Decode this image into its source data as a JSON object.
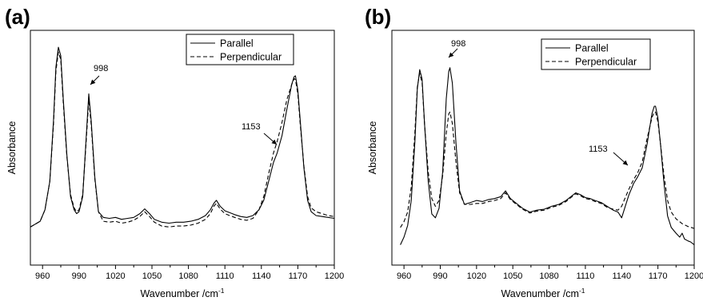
{
  "chart_data": [
    {
      "panel_label": "(a)",
      "type": "line",
      "xlabel": "Wavenumber /cm",
      "xlabel_superscript": "-1",
      "ylabel": "Absorbance",
      "xlim": [
        950,
        1200
      ],
      "ylim": [
        0,
        1
      ],
      "xticks": [
        960,
        990,
        1020,
        1050,
        1080,
        1110,
        1140,
        1170,
        1200
      ],
      "legend_position": "top-right",
      "series": [
        {
          "name": "Parallel",
          "style": "solid",
          "color": "#000000",
          "points": [
            [
              950,
              0.04
            ],
            [
              958,
              0.07
            ],
            [
              962,
              0.13
            ],
            [
              966,
              0.28
            ],
            [
              969,
              0.6
            ],
            [
              971,
              0.88
            ],
            [
              973,
              0.985
            ],
            [
              975,
              0.94
            ],
            [
              977,
              0.72
            ],
            [
              980,
              0.42
            ],
            [
              983,
              0.2
            ],
            [
              986,
              0.13
            ],
            [
              988,
              0.11
            ],
            [
              990,
              0.12
            ],
            [
              993,
              0.2
            ],
            [
              996,
              0.52
            ],
            [
              998,
              0.74
            ],
            [
              1000,
              0.6
            ],
            [
              1003,
              0.3
            ],
            [
              1006,
              0.12
            ],
            [
              1010,
              0.09
            ],
            [
              1015,
              0.085
            ],
            [
              1020,
              0.09
            ],
            [
              1025,
              0.08
            ],
            [
              1030,
              0.085
            ],
            [
              1035,
              0.09
            ],
            [
              1040,
              0.11
            ],
            [
              1044,
              0.135
            ],
            [
              1048,
              0.11
            ],
            [
              1052,
              0.08
            ],
            [
              1058,
              0.065
            ],
            [
              1064,
              0.06
            ],
            [
              1070,
              0.065
            ],
            [
              1076,
              0.065
            ],
            [
              1082,
              0.07
            ],
            [
              1088,
              0.08
            ],
            [
              1094,
              0.1
            ],
            [
              1098,
              0.13
            ],
            [
              1101,
              0.165
            ],
            [
              1103,
              0.18
            ],
            [
              1106,
              0.15
            ],
            [
              1110,
              0.125
            ],
            [
              1114,
              0.115
            ],
            [
              1118,
              0.105
            ],
            [
              1123,
              0.095
            ],
            [
              1128,
              0.09
            ],
            [
              1133,
              0.1
            ],
            [
              1138,
              0.13
            ],
            [
              1142,
              0.18
            ],
            [
              1146,
              0.28
            ],
            [
              1150,
              0.38
            ],
            [
              1153,
              0.43
            ],
            [
              1157,
              0.52
            ],
            [
              1161,
              0.66
            ],
            [
              1165,
              0.79
            ],
            [
              1167,
              0.83
            ],
            [
              1168,
              0.835
            ],
            [
              1170,
              0.76
            ],
            [
              1172,
              0.6
            ],
            [
              1175,
              0.35
            ],
            [
              1178,
              0.18
            ],
            [
              1181,
              0.12
            ],
            [
              1185,
              0.1
            ],
            [
              1190,
              0.095
            ],
            [
              1195,
              0.09
            ],
            [
              1200,
              0.085
            ]
          ]
        },
        {
          "name": "Perpendicular",
          "style": "dashed",
          "color": "#000000",
          "points": [
            [
              950,
              0.04
            ],
            [
              958,
              0.07
            ],
            [
              962,
              0.13
            ],
            [
              966,
              0.28
            ],
            [
              969,
              0.58
            ],
            [
              971,
              0.86
            ],
            [
              973,
              0.96
            ],
            [
              975,
              0.92
            ],
            [
              977,
              0.7
            ],
            [
              980,
              0.41
            ],
            [
              983,
              0.21
            ],
            [
              986,
              0.14
            ],
            [
              988,
              0.12
            ],
            [
              990,
              0.13
            ],
            [
              993,
              0.21
            ],
            [
              996,
              0.5
            ],
            [
              998,
              0.71
            ],
            [
              1000,
              0.58
            ],
            [
              1003,
              0.29
            ],
            [
              1006,
              0.12
            ],
            [
              1010,
              0.07
            ],
            [
              1015,
              0.065
            ],
            [
              1020,
              0.07
            ],
            [
              1025,
              0.06
            ],
            [
              1030,
              0.065
            ],
            [
              1035,
              0.075
            ],
            [
              1040,
              0.095
            ],
            [
              1044,
              0.12
            ],
            [
              1048,
              0.095
            ],
            [
              1052,
              0.065
            ],
            [
              1058,
              0.045
            ],
            [
              1064,
              0.04
            ],
            [
              1070,
              0.045
            ],
            [
              1076,
              0.045
            ],
            [
              1082,
              0.05
            ],
            [
              1088,
              0.06
            ],
            [
              1094,
              0.08
            ],
            [
              1098,
              0.11
            ],
            [
              1101,
              0.15
            ],
            [
              1103,
              0.165
            ],
            [
              1106,
              0.135
            ],
            [
              1110,
              0.11
            ],
            [
              1114,
              0.1
            ],
            [
              1118,
              0.09
            ],
            [
              1123,
              0.08
            ],
            [
              1128,
              0.075
            ],
            [
              1133,
              0.085
            ],
            [
              1138,
              0.13
            ],
            [
              1142,
              0.2
            ],
            [
              1146,
              0.32
            ],
            [
              1150,
              0.43
            ],
            [
              1153,
              0.49
            ],
            [
              1157,
              0.59
            ],
            [
              1161,
              0.71
            ],
            [
              1165,
              0.79
            ],
            [
              1167,
              0.82
            ],
            [
              1168,
              0.815
            ],
            [
              1170,
              0.74
            ],
            [
              1172,
              0.58
            ],
            [
              1175,
              0.36
            ],
            [
              1178,
              0.2
            ],
            [
              1181,
              0.14
            ],
            [
              1185,
              0.12
            ],
            [
              1190,
              0.11
            ],
            [
              1195,
              0.1
            ],
            [
              1200,
              0.095
            ]
          ]
        }
      ],
      "annotations": [
        {
          "text": "998",
          "x": 998
        },
        {
          "text": "1153",
          "x": 1153
        }
      ]
    },
    {
      "panel_label": "(b)",
      "type": "line",
      "xlabel": "Wavenumber /cm",
      "xlabel_superscript": "-1",
      "ylabel": "Absorbance",
      "xlim": [
        950,
        1200
      ],
      "ylim": [
        0,
        1
      ],
      "xticks": [
        960,
        990,
        1020,
        1050,
        1080,
        1110,
        1140,
        1170,
        1200
      ],
      "legend_position": "top-right",
      "series": [
        {
          "name": "Parallel",
          "style": "solid",
          "color": "#000000",
          "points": [
            [
              957,
              0.02
            ],
            [
              960,
              0.06
            ],
            [
              963,
              0.12
            ],
            [
              966,
              0.25
            ],
            [
              969,
              0.55
            ],
            [
              971,
              0.83
            ],
            [
              973,
              0.93
            ],
            [
              975,
              0.88
            ],
            [
              977,
              0.65
            ],
            [
              980,
              0.35
            ],
            [
              983,
              0.18
            ],
            [
              986,
              0.16
            ],
            [
              989,
              0.21
            ],
            [
              992,
              0.4
            ],
            [
              995,
              0.78
            ],
            [
              997,
              0.92
            ],
            [
              998,
              0.94
            ],
            [
              1000,
              0.86
            ],
            [
              1003,
              0.55
            ],
            [
              1006,
              0.3
            ],
            [
              1010,
              0.23
            ],
            [
              1015,
              0.24
            ],
            [
              1020,
              0.25
            ],
            [
              1025,
              0.245
            ],
            [
              1030,
              0.255
            ],
            [
              1035,
              0.26
            ],
            [
              1040,
              0.27
            ],
            [
              1044,
              0.3
            ],
            [
              1048,
              0.26
            ],
            [
              1052,
              0.24
            ],
            [
              1058,
              0.21
            ],
            [
              1064,
              0.19
            ],
            [
              1070,
              0.2
            ],
            [
              1076,
              0.205
            ],
            [
              1082,
              0.22
            ],
            [
              1088,
              0.23
            ],
            [
              1094,
              0.25
            ],
            [
              1098,
              0.27
            ],
            [
              1102,
              0.29
            ],
            [
              1106,
              0.28
            ],
            [
              1110,
              0.265
            ],
            [
              1114,
              0.26
            ],
            [
              1118,
              0.25
            ],
            [
              1123,
              0.24
            ],
            [
              1128,
              0.22
            ],
            [
              1133,
              0.2
            ],
            [
              1137,
              0.19
            ],
            [
              1140,
              0.16
            ],
            [
              1142,
              0.2
            ],
            [
              1146,
              0.28
            ],
            [
              1150,
              0.34
            ],
            [
              1153,
              0.37
            ],
            [
              1157,
              0.42
            ],
            [
              1161,
              0.54
            ],
            [
              1165,
              0.7
            ],
            [
              1167,
              0.74
            ],
            [
              1168,
              0.74
            ],
            [
              1170,
              0.68
            ],
            [
              1172,
              0.55
            ],
            [
              1175,
              0.34
            ],
            [
              1178,
              0.17
            ],
            [
              1181,
              0.11
            ],
            [
              1185,
              0.08
            ],
            [
              1188,
              0.06
            ],
            [
              1190,
              0.08
            ],
            [
              1192,
              0.05
            ],
            [
              1195,
              0.04
            ],
            [
              1197,
              0.035
            ],
            [
              1200,
              0.02
            ]
          ]
        },
        {
          "name": "Perpendicular",
          "style": "dashed",
          "color": "#000000",
          "points": [
            [
              957,
              0.11
            ],
            [
              960,
              0.14
            ],
            [
              963,
              0.19
            ],
            [
              966,
              0.32
            ],
            [
              969,
              0.6
            ],
            [
              971,
              0.84
            ],
            [
              973,
              0.91
            ],
            [
              975,
              0.86
            ],
            [
              977,
              0.65
            ],
            [
              980,
              0.4
            ],
            [
              983,
              0.26
            ],
            [
              986,
              0.22
            ],
            [
              989,
              0.25
            ],
            [
              992,
              0.38
            ],
            [
              995,
              0.6
            ],
            [
              997,
              0.7
            ],
            [
              998,
              0.71
            ],
            [
              1000,
              0.65
            ],
            [
              1003,
              0.45
            ],
            [
              1006,
              0.29
            ],
            [
              1010,
              0.23
            ],
            [
              1015,
              0.23
            ],
            [
              1020,
              0.235
            ],
            [
              1025,
              0.235
            ],
            [
              1030,
              0.245
            ],
            [
              1035,
              0.25
            ],
            [
              1040,
              0.26
            ],
            [
              1044,
              0.29
            ],
            [
              1048,
              0.255
            ],
            [
              1052,
              0.235
            ],
            [
              1058,
              0.205
            ],
            [
              1064,
              0.185
            ],
            [
              1070,
              0.195
            ],
            [
              1076,
              0.2
            ],
            [
              1082,
              0.215
            ],
            [
              1088,
              0.225
            ],
            [
              1094,
              0.245
            ],
            [
              1098,
              0.265
            ],
            [
              1102,
              0.285
            ],
            [
              1106,
              0.275
            ],
            [
              1110,
              0.26
            ],
            [
              1114,
              0.255
            ],
            [
              1118,
              0.245
            ],
            [
              1123,
              0.235
            ],
            [
              1128,
              0.215
            ],
            [
              1133,
              0.205
            ],
            [
              1137,
              0.2
            ],
            [
              1140,
              0.22
            ],
            [
              1142,
              0.25
            ],
            [
              1146,
              0.31
            ],
            [
              1150,
              0.36
            ],
            [
              1153,
              0.39
            ],
            [
              1157,
              0.45
            ],
            [
              1161,
              0.57
            ],
            [
              1165,
              0.68
            ],
            [
              1167,
              0.71
            ],
            [
              1168,
              0.71
            ],
            [
              1170,
              0.66
            ],
            [
              1172,
              0.55
            ],
            [
              1175,
              0.38
            ],
            [
              1178,
              0.25
            ],
            [
              1181,
              0.19
            ],
            [
              1185,
              0.155
            ],
            [
              1190,
              0.13
            ],
            [
              1195,
              0.115
            ],
            [
              1200,
              0.105
            ]
          ]
        }
      ],
      "annotations": [
        {
          "text": "998",
          "x": 998
        },
        {
          "text": "1153",
          "x": 1153
        }
      ]
    }
  ]
}
